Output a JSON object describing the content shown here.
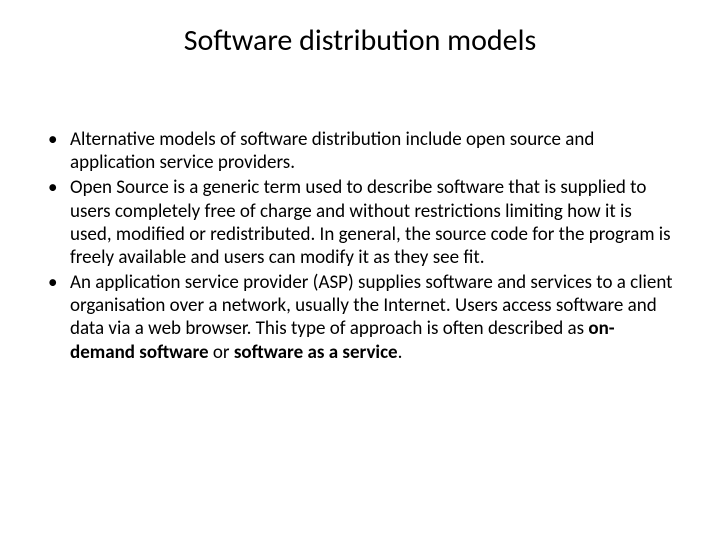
{
  "slide": {
    "title": "Software distribution models",
    "title_fontsize": 30,
    "body_fontsize": 19,
    "background_color": "#ffffff",
    "text_color": "#000000",
    "font_family": "Calibri",
    "bullets": [
      {
        "text": "Alternative models of software distribution include open source and application service providers."
      },
      {
        "text": "Open Source is a generic term used to describe software that is supplied to users completely free of charge and without restrictions limiting how it is used, modified or redistributed. In general, the source code for the program is freely available and users can modify it as they see fit."
      },
      {
        "prefix": "An application service provider (ASP) supplies software and services to a client organisation over a network, usually the Internet. Users access software and data via a web browser. This type of approach is often described as ",
        "bold1": "on-demand software",
        "mid": " or ",
        "bold2": "software as a service",
        "suffix": "."
      }
    ]
  }
}
